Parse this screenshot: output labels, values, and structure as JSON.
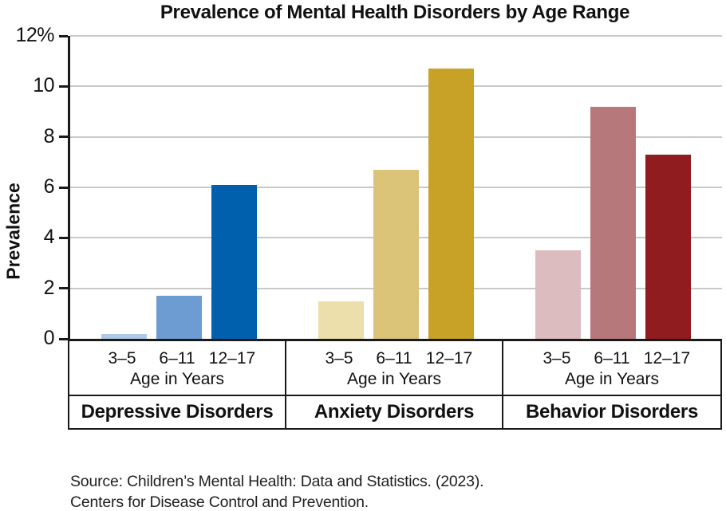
{
  "chart_data": {
    "type": "bar",
    "title": "Prevalence of Mental Health Disorders by Age Range",
    "ylabel": "Prevalence",
    "xlabel": "",
    "ylim": [
      0,
      12
    ],
    "grid": true,
    "grid_color": "#c9c9c9",
    "axis_color": "#1a1a1a",
    "yticks": [
      0,
      2,
      4,
      6,
      8,
      10,
      12
    ],
    "ytick_labels": [
      "0",
      "2",
      "4",
      "6",
      "8",
      "10",
      "12%"
    ],
    "categories": [
      "3–5",
      "6–11",
      "12–17"
    ],
    "age_axis_label": "Age in Years",
    "groups": [
      {
        "label": "Depressive Disorders",
        "slug": "depressive",
        "values": [
          0.2,
          1.7,
          6.1
        ],
        "colors": [
          "#aec9e8",
          "#6d9cd2",
          "#0060ad"
        ]
      },
      {
        "label": "Anxiety Disorders",
        "slug": "anxiety",
        "values": [
          1.5,
          6.7,
          10.7
        ],
        "colors": [
          "#ecdfab",
          "#dbc377",
          "#c8a127"
        ]
      },
      {
        "label": "Behavior Disorders",
        "slug": "behavior",
        "values": [
          3.5,
          9.2,
          7.3
        ],
        "colors": [
          "#dcbcbf",
          "#b7787b",
          "#911c1f"
        ]
      }
    ]
  },
  "source": {
    "line1": "Source: Children’s Mental Health: Data and Statistics. (2023).",
    "line2": "Centers for Disease Control and Prevention."
  }
}
